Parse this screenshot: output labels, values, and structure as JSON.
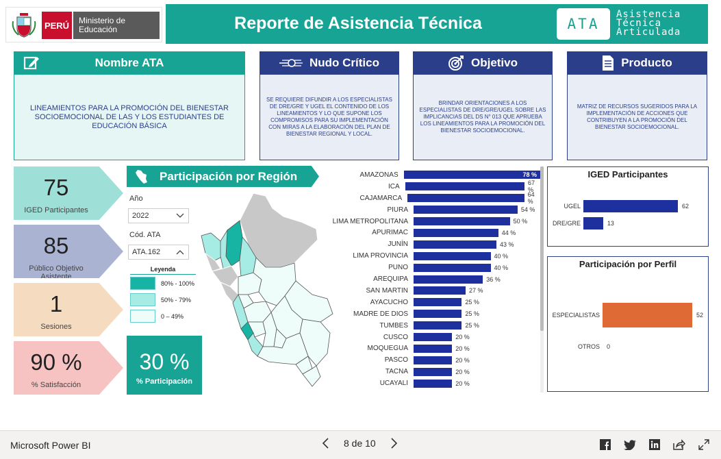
{
  "header": {
    "peru": "PERÚ",
    "ministerio": "Ministerio de Educación",
    "title": "Reporte de Asistencia Técnica",
    "ata_badge": "ATA",
    "ata_words": [
      "Asistencia",
      "Técnica",
      "Articulada"
    ]
  },
  "cards": {
    "nombre": {
      "title": "Nombre ATA",
      "text": "LINEAMIENTOS PARA LA PROMOCIÓN DEL BIENESTAR SOCIOEMOCIONAL DE LAS Y LOS ESTUDIANTES DE EDUCACIÓN BÁSICA"
    },
    "nudo": {
      "title": "Nudo Crítico",
      "text": "SE REQUIERE DIFUNDIR A LOS ESPECIALISTAS DE DRE/GRE Y UGEL EL CONTENIDO DE LOS LINEAMIENTOS Y LO QUE SUPONE LOS COMPROMISOS PARA SU IMPLEMENTACIÓN CON MIRAS A LA ELABORACIÓN DEL PLAN DE BIENESTAR REGIONAL Y LOCAL."
    },
    "objetivo": {
      "title": "Objetivo",
      "text": "BRINDAR ORIENTACIONES A LOS ESPECIALISTAS DE DRE/GRE/UGEL SOBRE LAS IMPLICANCIAS DEL DS N° 013 QUE APRUEBA LOS LINEAMIENTOS PARA LA PROMOCIÓN DEL BIENESTAR SOCIOEMOCIONAL."
    },
    "producto": {
      "title": "Producto",
      "text": "MATRIZ DE RECURSOS SUGERIDOS PARA LA IMPLEMENTACIÓN DE ACCIONES QUE CONTRIBUYEN A LA PROMOCIÓN DEL BIENESTAR SOCIOEMOCIONAL."
    }
  },
  "kpis": [
    {
      "value": "75",
      "label": "IGED Participantes",
      "color": "#9ee0d8"
    },
    {
      "value": "85",
      "label": "Público Objetivo Asistente",
      "color": "#aab4d2"
    },
    {
      "value": "1",
      "label": "Sesiones",
      "color": "#f5dcc1"
    },
    {
      "value": "90 %",
      "label": "% Satisfacción",
      "color": "#f6c2c2"
    }
  ],
  "region": {
    "title": "Participación por Región",
    "year_label": "Año",
    "year_value": "2022",
    "cod_label": "Cód. ATA",
    "cod_value": "ATA.162",
    "legend_title": "Leyenda",
    "legend": [
      {
        "label": "80% - 100%",
        "color": "#17b3a3"
      },
      {
        "label": "50% - 79%",
        "color": "#a7ece4"
      },
      {
        "label": "0 – 49%",
        "color": "#eefcfa"
      }
    ],
    "pct_value": "30 %",
    "pct_label": "% Participación"
  },
  "chart_data": [
    {
      "type": "bar",
      "orientation": "horizontal",
      "categories": [
        "AMAZONAS",
        "ICA",
        "CAJAMARCA",
        "PIURA",
        "LIMA METROPOLITANA",
        "APURIMAC",
        "JUNÍN",
        "LIMA PROVINCIA",
        "PUNO",
        "AREQUIPA",
        "SAN MARTIN",
        "AYACUCHO",
        "MADRE DE DIOS",
        "TUMBES",
        "CUSCO",
        "MOQUEGUA",
        "PASCO",
        "TACNA",
        "UCAYALI"
      ],
      "values": [
        78,
        67,
        64,
        54,
        50,
        44,
        43,
        40,
        40,
        36,
        27,
        25,
        25,
        25,
        20,
        20,
        20,
        20,
        20
      ],
      "labels": [
        "78 %",
        "67 %",
        "64 %",
        "54 %",
        "50 %",
        "44 %",
        "43 %",
        "40 %",
        "40 %",
        "36 %",
        "27 %",
        "25 %",
        "25 %",
        "25 %",
        "20 %",
        "20 %",
        "20 %",
        "20 %",
        "20 %"
      ],
      "color": "#1e2f9e"
    },
    {
      "type": "bar",
      "orientation": "horizontal",
      "title": "IGED Participantes",
      "categories": [
        "UGEL",
        "DRE/GRE"
      ],
      "values": [
        62,
        13
      ],
      "color": "#1e2f9e"
    },
    {
      "type": "bar",
      "orientation": "horizontal",
      "title": "Participación por Perfil",
      "categories": [
        "ESPECIALISTAS",
        "OTROS"
      ],
      "values": [
        52,
        0
      ],
      "color": "#e06a35"
    }
  ],
  "footer": {
    "brand": "Microsoft Power BI",
    "page": "8 de 10"
  }
}
